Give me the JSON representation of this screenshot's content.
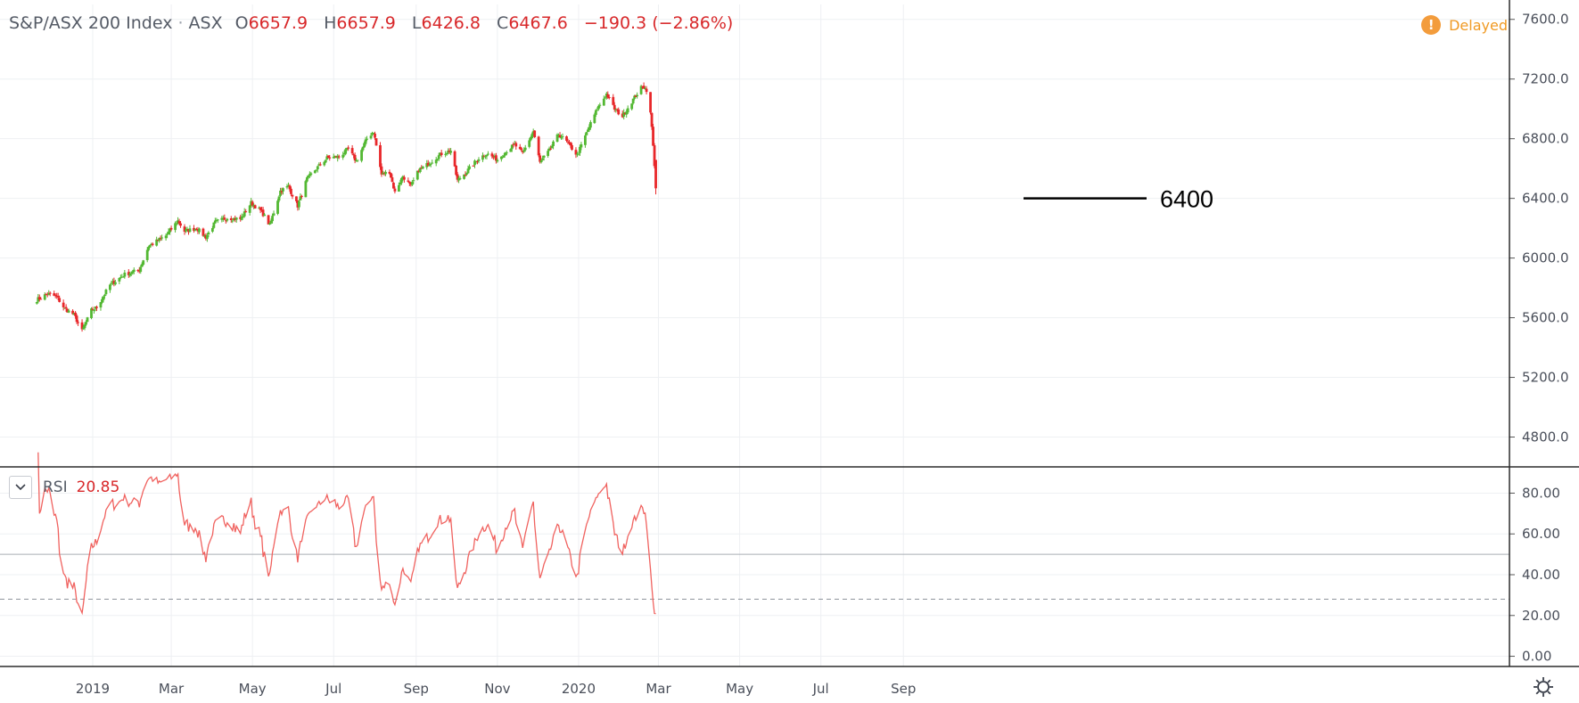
{
  "legend": {
    "title": "S&P/ASX 200 Index",
    "sep": "·",
    "exchange": "ASX",
    "open_key": "O",
    "open": "6657.9",
    "high_key": "H",
    "high": "6657.9",
    "low_key": "L",
    "low": "6426.8",
    "close_key": "C",
    "close": "6467.6",
    "change": "−190.3 (−2.86%)"
  },
  "status": {
    "icon": "!",
    "label": "Delayed"
  },
  "rsi_panel": {
    "name": "RSI",
    "value": "20.85",
    "toggle_icon": "chevron-down-icon"
  },
  "annotation": {
    "label": "6400",
    "price": 6400
  },
  "settings": {
    "icon": "gear-icon"
  },
  "colors": {
    "up": "#53b833",
    "down": "#e8272a",
    "rsi_line": "#f0625f",
    "grid": "#eef0f3",
    "axis": "#2b2b2b"
  },
  "chart_data": [
    {
      "type": "candlestick",
      "series_name": "S&P/ASX 200 Index",
      "y_ticks": [
        "7600.0",
        "7200.0",
        "6800.0",
        "6400.0",
        "6000.0",
        "5600.0",
        "5200.0",
        "4800.0"
      ],
      "ylim": [
        4600,
        7700
      ],
      "x_ticks": [
        "2019",
        "Mar",
        "May",
        "Jul",
        "Sep",
        "Nov",
        "2020",
        "Mar",
        "May",
        "Jul",
        "Sep"
      ],
      "path_anchors": [
        [
          "2018-11-20",
          5720
        ],
        [
          "2018-11-28",
          5760
        ],
        [
          "2018-12-05",
          5740
        ],
        [
          "2018-12-11",
          5660
        ],
        [
          "2018-12-18",
          5620
        ],
        [
          "2018-12-24",
          5510
        ],
        [
          "2018-12-31",
          5650
        ],
        [
          "2019-01-04",
          5670
        ],
        [
          "2019-01-14",
          5820
        ],
        [
          "2019-01-25",
          5890
        ],
        [
          "2019-02-05",
          5920
        ],
        [
          "2019-02-12",
          6080
        ],
        [
          "2019-02-25",
          6150
        ],
        [
          "2019-03-06",
          6250
        ],
        [
          "2019-03-11",
          6180
        ],
        [
          "2019-03-20",
          6200
        ],
        [
          "2019-03-27",
          6140
        ],
        [
          "2019-04-03",
          6240
        ],
        [
          "2019-04-12",
          6270
        ],
        [
          "2019-04-22",
          6260
        ],
        [
          "2019-04-30",
          6370
        ],
        [
          "2019-05-08",
          6310
        ],
        [
          "2019-05-14",
          6220
        ],
        [
          "2019-05-22",
          6450
        ],
        [
          "2019-05-28",
          6480
        ],
        [
          "2019-06-04",
          6350
        ],
        [
          "2019-06-11",
          6530
        ],
        [
          "2019-06-18",
          6600
        ],
        [
          "2019-06-26",
          6670
        ],
        [
          "2019-07-05",
          6680
        ],
        [
          "2019-07-12",
          6730
        ],
        [
          "2019-07-18",
          6650
        ],
        [
          "2019-07-26",
          6800
        ],
        [
          "2019-07-31",
          6850
        ],
        [
          "2019-08-06",
          6560
        ],
        [
          "2019-08-12",
          6580
        ],
        [
          "2019-08-16",
          6440
        ],
        [
          "2019-08-22",
          6550
        ],
        [
          "2019-08-28",
          6480
        ],
        [
          "2019-09-03",
          6590
        ],
        [
          "2019-09-10",
          6630
        ],
        [
          "2019-09-20",
          6700
        ],
        [
          "2019-09-27",
          6720
        ],
        [
          "2019-10-02",
          6520
        ],
        [
          "2019-10-09",
          6580
        ],
        [
          "2019-10-18",
          6670
        ],
        [
          "2019-10-24",
          6700
        ],
        [
          "2019-11-01",
          6660
        ],
        [
          "2019-11-08",
          6720
        ],
        [
          "2019-11-14",
          6760
        ],
        [
          "2019-11-20",
          6700
        ],
        [
          "2019-11-28",
          6850
        ],
        [
          "2019-12-03",
          6640
        ],
        [
          "2019-12-10",
          6720
        ],
        [
          "2019-12-17",
          6830
        ],
        [
          "2019-12-23",
          6780
        ],
        [
          "2019-12-31",
          6690
        ],
        [
          "2020-01-08",
          6860
        ],
        [
          "2020-01-15",
          7000
        ],
        [
          "2020-01-22",
          7100
        ],
        [
          "2020-01-28",
          7000
        ],
        [
          "2020-02-03",
          6950
        ],
        [
          "2020-02-10",
          7050
        ],
        [
          "2020-02-17",
          7140
        ],
        [
          "2020-02-20",
          7150
        ],
        [
          "2020-02-24",
          6990
        ],
        [
          "2020-02-26",
          6750
        ],
        [
          "2020-02-28",
          6468
        ]
      ],
      "last_bar": {
        "open": 6657.9,
        "high": 6657.9,
        "low": 6426.8,
        "close": 6467.6
      }
    },
    {
      "type": "line",
      "series_name": "RSI",
      "y_ticks": [
        "80.00",
        "60.00",
        "40.00",
        "20.00",
        "0.00"
      ],
      "ylim": [
        -5,
        92
      ],
      "reference_lines": [
        50,
        28
      ],
      "last_value": 20.85
    }
  ]
}
